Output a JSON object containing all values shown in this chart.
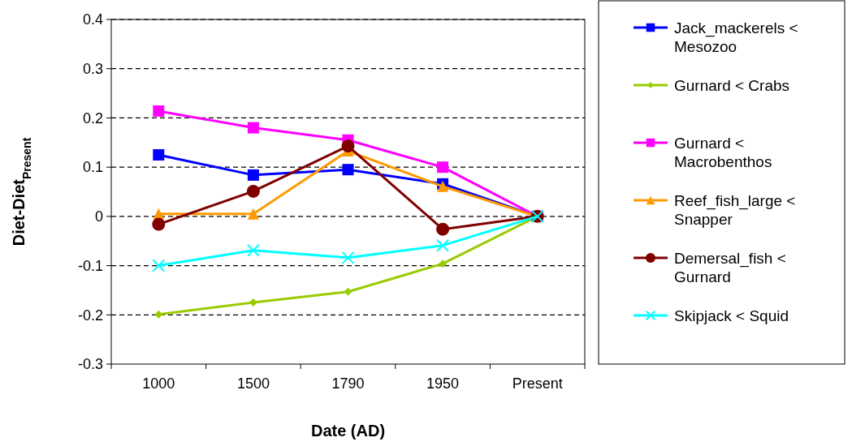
{
  "chart_data": {
    "type": "line",
    "xlabel": "Date (AD)",
    "ylabel": "Diet-Diet$_{Present}$",
    "categories": [
      "1000",
      "1500",
      "1790",
      "1950",
      "Present"
    ],
    "ylim": [
      -0.3,
      0.4
    ],
    "yticks": [
      {
        "value": -0.3,
        "label": "-0.3"
      },
      {
        "value": -0.2,
        "label": "-0.2"
      },
      {
        "value": -0.1,
        "label": "-0.1"
      },
      0,
      0.1,
      0.2,
      0.3,
      0.4
    ],
    "grid": "y",
    "line_style": "solid",
    "legend": "right",
    "series": [
      {
        "name": "Jack_mackerels < Mesozoo",
        "color": "#0000ff",
        "marker": "square",
        "values": [
          0.125,
          0.084,
          0.095,
          0.066,
          0
        ]
      },
      {
        "name": "Gurnard < Crabs",
        "color": "#99cc00",
        "marker": "diamond",
        "values": [
          -0.199,
          -0.175,
          -0.153,
          -0.096,
          0
        ]
      },
      {
        "name": "Gurnard < Macrobenthos",
        "color": "#ff00ff",
        "marker": "square",
        "values": [
          0.214,
          0.18,
          0.155,
          0.1,
          0
        ]
      },
      {
        "name": "Reef_fish_large < Snapper",
        "color": "#ff9900",
        "marker": "triangle",
        "values": [
          0.005,
          0.005,
          0.133,
          0.061,
          0
        ]
      },
      {
        "name": "Demersal_fish < Gurnard",
        "color": "#800000",
        "marker": "circle",
        "values": [
          -0.016,
          0.051,
          0.143,
          -0.026,
          0
        ]
      },
      {
        "name": "Skipjack < Squid",
        "color": "#00ffff",
        "marker": "cross",
        "values": [
          -0.1,
          -0.069,
          -0.084,
          -0.059,
          0
        ]
      }
    ]
  }
}
